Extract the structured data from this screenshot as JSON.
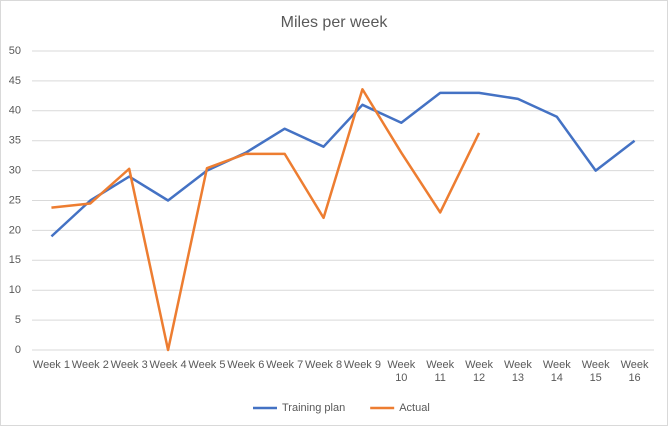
{
  "chart_data": {
    "type": "line",
    "title": "Miles per week",
    "categories": [
      "Week 1",
      "Week 2",
      "Week 3",
      "Week 4",
      "Week 5",
      "Week 6",
      "Week 7",
      "Week 8",
      "Week 9",
      "Week 10",
      "Week 11",
      "Week 12",
      "Week 13",
      "Week 14",
      "Week 15",
      "Week 16"
    ],
    "series": [
      {
        "name": "Training plan",
        "color": "#4472c4",
        "values": [
          19,
          25,
          29,
          25,
          30,
          33,
          37,
          34,
          41,
          38,
          43,
          43,
          42,
          39,
          30,
          35
        ]
      },
      {
        "name": "Actual",
        "color": "#ed7d31",
        "values": [
          23.8,
          24.5,
          30.3,
          0,
          30.4,
          32.8,
          32.8,
          22.1,
          43.6,
          33,
          23,
          36.3,
          null,
          null,
          null,
          null
        ]
      }
    ],
    "ylim": [
      0,
      50
    ],
    "yticks": [
      0,
      5,
      10,
      15,
      20,
      25,
      30,
      35,
      40,
      45,
      50
    ],
    "grid": true,
    "legend": "bottom"
  }
}
